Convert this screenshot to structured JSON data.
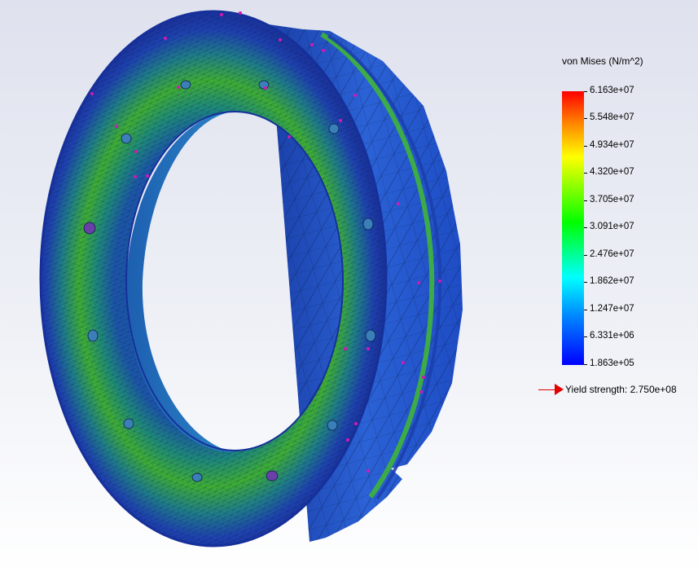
{
  "legend": {
    "title": "von Mises (N/m^2)",
    "labels": [
      "6.163e+07",
      "5.548e+07",
      "4.934e+07",
      "4.320e+07",
      "3.705e+07",
      "3.091e+07",
      "2.476e+07",
      "1.862e+07",
      "1.247e+07",
      "6.331e+06",
      "1.863e+05"
    ],
    "colors": {
      "max": "#ff0000",
      "mid": "#00ff00",
      "min": "#0000ff"
    }
  },
  "yield": {
    "label": "Yield strength: 2.750e+08",
    "color": "#e00000"
  },
  "model": {
    "fill_low": "#1c3fae",
    "fill_mid": "#1f8a6a",
    "fill_high": "#4fbf2a",
    "mesh_color": "#0c1d4a",
    "marker_color": "#d418b4"
  }
}
